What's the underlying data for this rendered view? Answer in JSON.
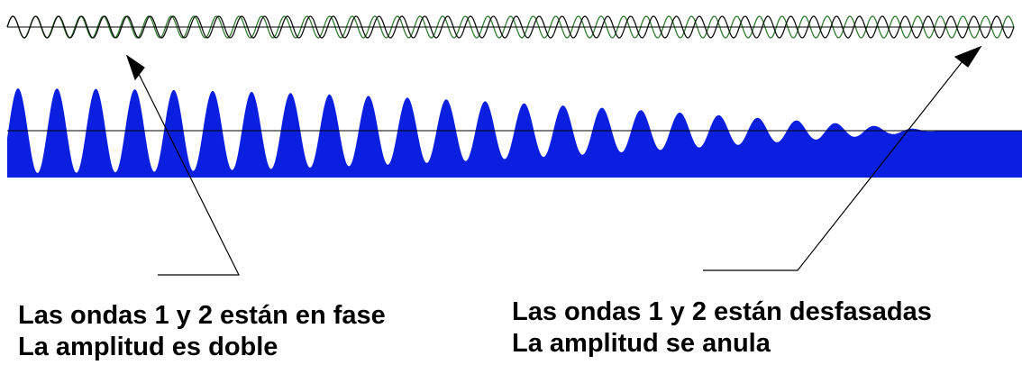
{
  "captions": [
    {
      "lines": [
        "Las ondas 1 y 2 están en fase",
        "La amplitud es doble"
      ]
    },
    {
      "lines": [
        "Las ondas 1 y 2 están desfasadas",
        "La amplitud se anula"
      ]
    }
  ]
}
